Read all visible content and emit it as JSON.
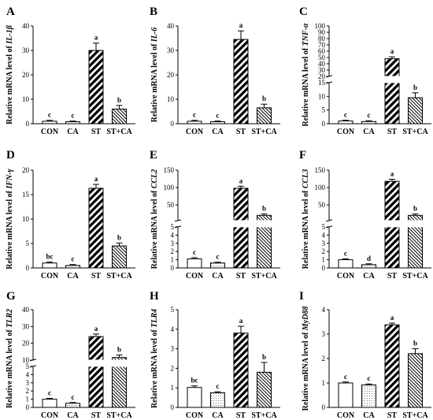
{
  "chart_data": [
    {
      "id": "A",
      "type": "bar",
      "panel_letter": "A",
      "ylabel_prefix": "Relative mRNA level of ",
      "ylabel_gene": "IL-1β",
      "categories": [
        "CON",
        "CA",
        "ST",
        "ST+CA"
      ],
      "values": [
        1.0,
        0.8,
        30.0,
        6.0
      ],
      "errors": [
        0.4,
        0.3,
        3.0,
        1.5
      ],
      "significance": [
        "c",
        "c",
        "a",
        "b"
      ],
      "yticks": [
        0,
        10,
        20,
        30,
        40
      ],
      "ylim": [
        0,
        40
      ]
    },
    {
      "id": "B",
      "type": "bar",
      "panel_letter": "B",
      "ylabel_prefix": "Relative mRNA level of ",
      "ylabel_gene": "IL-6",
      "categories": [
        "CON",
        "CA",
        "ST",
        "ST+CA"
      ],
      "values": [
        1.0,
        0.8,
        34.5,
        6.5
      ],
      "errors": [
        0.4,
        0.3,
        3.5,
        1.5
      ],
      "significance": [
        "c",
        "c",
        "a",
        "b"
      ],
      "yticks": [
        0,
        10,
        20,
        30,
        40
      ],
      "ylim": [
        0,
        40
      ]
    },
    {
      "id": "C",
      "type": "bar",
      "panel_letter": "C",
      "ylabel_prefix": "Relative mRNA level of ",
      "ylabel_gene": "TNF-α",
      "categories": [
        "CON",
        "CA",
        "ST",
        "ST+CA"
      ],
      "values": [
        1.0,
        0.8,
        48.0,
        9.5
      ],
      "errors": [
        0.3,
        0.3,
        3.0,
        1.8
      ],
      "significance": [
        "c",
        "c",
        "a",
        "b"
      ],
      "axis_break": true,
      "lower_range": [
        0,
        15
      ],
      "lower_ticks": [
        0,
        5,
        10,
        15
      ],
      "upper_range": [
        20,
        100
      ],
      "upper_ticks": [
        20,
        30,
        40,
        50,
        60,
        70,
        80,
        90,
        100
      ]
    },
    {
      "id": "D",
      "type": "bar",
      "panel_letter": "D",
      "ylabel_prefix": "Relative mRNA level of ",
      "ylabel_gene": "IFN-γ",
      "categories": [
        "CON",
        "CA",
        "ST",
        "ST+CA"
      ],
      "values": [
        1.0,
        0.5,
        16.3,
        4.5
      ],
      "errors": [
        0.2,
        0.2,
        0.8,
        0.6
      ],
      "significance": [
        "bc",
        "c",
        "a",
        "b"
      ],
      "yticks": [
        0,
        5,
        10,
        15,
        20
      ],
      "ylim": [
        0,
        20
      ]
    },
    {
      "id": "E",
      "type": "bar",
      "panel_letter": "E",
      "ylabel_prefix": "Relative mRNA level of ",
      "ylabel_gene": "CCL2",
      "categories": [
        "CON",
        "CA",
        "ST",
        "ST+CA"
      ],
      "values": [
        1.1,
        0.6,
        98.0,
        20.0
      ],
      "errors": [
        0.15,
        0.1,
        6.0,
        4.0
      ],
      "significance": [
        "c",
        "c",
        "a",
        "b"
      ],
      "axis_break": true,
      "lower_range": [
        0,
        5
      ],
      "lower_ticks": [
        0,
        1,
        2,
        3,
        4,
        5
      ],
      "upper_range": [
        5,
        150
      ],
      "upper_ticks": [
        50,
        100,
        150
      ]
    },
    {
      "id": "F",
      "type": "bar",
      "panel_letter": "F",
      "ylabel_prefix": "Relative mRNA level of ",
      "ylabel_gene": "CCL3",
      "categories": [
        "CON",
        "CA",
        "ST",
        "ST+CA"
      ],
      "values": [
        1.0,
        0.4,
        118.0,
        20.0
      ],
      "errors": [
        0.1,
        0.1,
        6.0,
        4.0
      ],
      "significance": [
        "c",
        "d",
        "a",
        "b"
      ],
      "axis_break": true,
      "lower_range": [
        0,
        5
      ],
      "lower_ticks": [
        0,
        1,
        2,
        3,
        4,
        5
      ],
      "upper_range": [
        5,
        150
      ],
      "upper_ticks": [
        50,
        100,
        150
      ]
    },
    {
      "id": "G",
      "type": "bar",
      "panel_letter": "G",
      "ylabel_prefix": "Relative mRNA level of ",
      "ylabel_gene": "TLR2",
      "categories": [
        "CON",
        "CA",
        "ST",
        "ST+CA"
      ],
      "values": [
        1.0,
        0.5,
        24.0,
        11.5
      ],
      "errors": [
        0.1,
        0.1,
        1.5,
        1.5
      ],
      "significance": [
        "c",
        "c",
        "a",
        "b"
      ],
      "axis_break": true,
      "lower_range": [
        0,
        5
      ],
      "lower_ticks": [
        0,
        1,
        2,
        3,
        4,
        5
      ],
      "upper_range": [
        10,
        40
      ],
      "upper_ticks": [
        10,
        20,
        30,
        40
      ]
    },
    {
      "id": "H",
      "type": "bar",
      "panel_letter": "H",
      "ylabel_prefix": "Relative mRNA level of ",
      "ylabel_gene": "TLR4",
      "categories": [
        "CON",
        "CA",
        "ST",
        "ST+CA"
      ],
      "values": [
        1.02,
        0.75,
        3.8,
        1.8
      ],
      "errors": [
        0.08,
        0.05,
        0.35,
        0.5
      ],
      "significance": [
        "bc",
        "c",
        "a",
        "b"
      ],
      "yticks": [
        0,
        1,
        2,
        3,
        4,
        5
      ],
      "ylim": [
        0,
        5
      ]
    },
    {
      "id": "I",
      "type": "bar",
      "panel_letter": "I",
      "ylabel_prefix": "Relative mRNA level of ",
      "ylabel_gene": "MyD88",
      "categories": [
        "CON",
        "CA",
        "ST",
        "ST+CA"
      ],
      "values": [
        1.0,
        0.92,
        3.38,
        2.2
      ],
      "errors": [
        0.04,
        0.04,
        0.07,
        0.2
      ],
      "significance": [
        "c",
        "c",
        "a",
        "b"
      ],
      "yticks": [
        0,
        1,
        2,
        3,
        4
      ],
      "ylim": [
        0,
        4
      ]
    }
  ]
}
